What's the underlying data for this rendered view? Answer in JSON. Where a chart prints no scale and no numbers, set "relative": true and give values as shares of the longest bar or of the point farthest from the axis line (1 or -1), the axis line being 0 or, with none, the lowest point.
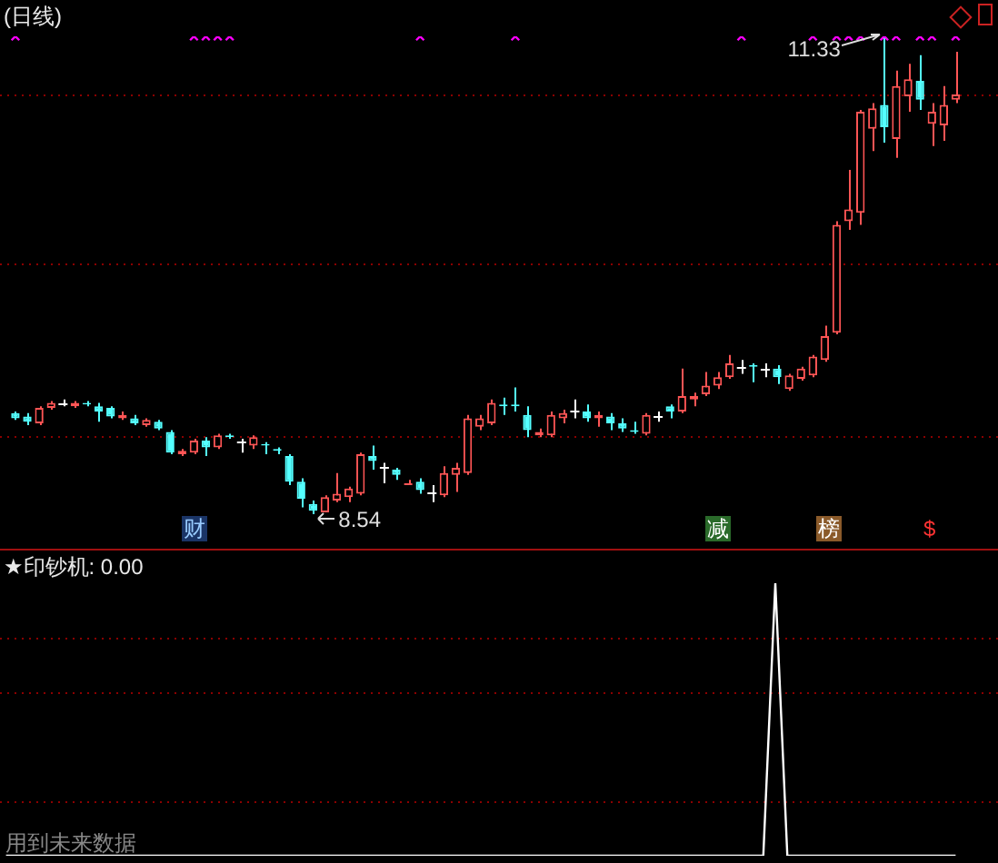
{
  "chart_data": [
    {
      "type": "candlestick",
      "title": "(日线)",
      "ref_lines": [
        {
          "axis": "y",
          "value": 10.99,
          "color": "#8b0000",
          "line_style": "dotted"
        },
        {
          "axis": "y",
          "value": 10.0,
          "color": "#8b0000",
          "line_style": "dotted"
        },
        {
          "axis": "y",
          "value": 9.0,
          "color": "#8b0000",
          "line_style": "dotted"
        }
      ],
      "categories": [
        null,
        null,
        null,
        null,
        null,
        null,
        null,
        null,
        null,
        null,
        null,
        null,
        null,
        null,
        null,
        null,
        null,
        null,
        null,
        null,
        null,
        null,
        null,
        null,
        null,
        null,
        null,
        null,
        null,
        null,
        null,
        null,
        null,
        null,
        null,
        null,
        null,
        null,
        null,
        null,
        null,
        null,
        null,
        null,
        null,
        null,
        null,
        null,
        null,
        null,
        null,
        null,
        null,
        null,
        null,
        null,
        null,
        null,
        null,
        null,
        null,
        null,
        null,
        null,
        null,
        null,
        null,
        null,
        null,
        null,
        null,
        null,
        null,
        null,
        null,
        null,
        null,
        null,
        null,
        null
      ],
      "ohlc": [
        [
          9.13,
          9.14,
          9.09,
          9.1
        ],
        [
          9.11,
          9.13,
          9.06,
          9.08
        ],
        [
          9.07,
          9.17,
          9.06,
          9.16
        ],
        [
          9.16,
          9.2,
          9.15,
          9.19
        ],
        [
          9.19,
          9.21,
          9.17,
          9.19
        ],
        [
          9.17,
          9.2,
          9.16,
          9.19
        ],
        [
          9.19,
          9.2,
          9.17,
          9.18
        ],
        [
          9.17,
          9.19,
          9.08,
          9.14
        ],
        [
          9.16,
          9.17,
          9.1,
          9.11
        ],
        [
          9.1,
          9.14,
          9.09,
          9.12
        ],
        [
          9.1,
          9.12,
          9.06,
          9.07
        ],
        [
          9.06,
          9.1,
          9.05,
          9.09
        ],
        [
          9.08,
          9.09,
          9.03,
          9.04
        ],
        [
          9.02,
          9.03,
          8.89,
          8.9
        ],
        [
          8.89,
          8.92,
          8.88,
          8.91
        ],
        [
          8.9,
          8.98,
          8.89,
          8.97
        ],
        [
          8.97,
          8.99,
          8.88,
          8.93
        ],
        [
          8.93,
          9.01,
          8.92,
          9.0
        ],
        [
          9.0,
          9.01,
          8.98,
          8.99
        ],
        [
          8.96,
          8.98,
          8.9,
          8.96
        ],
        [
          8.94,
          9.0,
          8.92,
          8.99
        ],
        [
          8.95,
          8.96,
          8.89,
          8.94
        ],
        [
          8.92,
          8.93,
          8.89,
          8.91
        ],
        [
          8.88,
          8.89,
          8.71,
          8.73
        ],
        [
          8.73,
          8.75,
          8.58,
          8.63
        ],
        [
          8.6,
          8.62,
          8.54,
          8.56
        ],
        [
          8.55,
          8.65,
          8.55,
          8.64
        ],
        [
          8.62,
          8.78,
          8.61,
          8.66
        ],
        [
          8.64,
          8.7,
          8.61,
          8.69
        ],
        [
          8.66,
          8.9,
          8.65,
          8.89
        ],
        [
          8.88,
          8.94,
          8.8,
          8.85
        ],
        [
          8.82,
          8.84,
          8.72,
          8.82
        ],
        [
          8.8,
          8.81,
          8.74,
          8.77
        ],
        [
          8.71,
          8.74,
          8.71,
          8.72
        ],
        [
          8.73,
          8.75,
          8.66,
          8.68
        ],
        [
          8.67,
          8.71,
          8.61,
          8.67
        ],
        [
          8.65,
          8.82,
          8.64,
          8.78
        ],
        [
          8.77,
          8.84,
          8.67,
          8.81
        ],
        [
          8.78,
          9.12,
          8.77,
          9.1
        ],
        [
          9.05,
          9.12,
          9.03,
          9.1
        ],
        [
          9.07,
          9.21,
          9.06,
          9.19
        ],
        [
          9.18,
          9.22,
          9.12,
          9.17
        ],
        [
          9.18,
          9.28,
          9.14,
          9.17
        ],
        [
          9.12,
          9.17,
          8.99,
          9.03
        ],
        [
          9.0,
          9.04,
          8.99,
          9.02
        ],
        [
          9.0,
          9.14,
          8.99,
          9.12
        ],
        [
          9.1,
          9.15,
          9.07,
          9.13
        ],
        [
          9.14,
          9.21,
          9.1,
          9.14
        ],
        [
          9.14,
          9.18,
          9.08,
          9.1
        ],
        [
          9.1,
          9.14,
          9.05,
          9.12
        ],
        [
          9.11,
          9.13,
          9.03,
          9.07
        ],
        [
          9.07,
          9.1,
          9.02,
          9.04
        ],
        [
          9.03,
          9.08,
          9.01,
          9.02
        ],
        [
          9.01,
          9.13,
          9.0,
          9.12
        ],
        [
          9.11,
          9.14,
          9.08,
          9.11
        ],
        [
          9.17,
          9.18,
          9.1,
          9.14
        ],
        [
          9.14,
          9.39,
          9.13,
          9.23
        ],
        [
          9.21,
          9.25,
          9.17,
          9.23
        ],
        [
          9.24,
          9.37,
          9.23,
          9.29
        ],
        [
          9.29,
          9.37,
          9.27,
          9.34
        ],
        [
          9.34,
          9.47,
          9.33,
          9.42
        ],
        [
          9.4,
          9.44,
          9.36,
          9.4
        ],
        [
          9.41,
          9.42,
          9.31,
          9.4
        ],
        [
          9.39,
          9.42,
          9.34,
          9.39
        ],
        [
          9.39,
          9.41,
          9.3,
          9.34
        ],
        [
          9.27,
          9.36,
          9.26,
          9.35
        ],
        [
          9.33,
          9.4,
          9.32,
          9.39
        ],
        [
          9.35,
          9.47,
          9.34,
          9.46
        ],
        [
          9.44,
          9.64,
          9.43,
          9.58
        ],
        [
          9.6,
          10.25,
          9.59,
          10.23
        ],
        [
          10.25,
          10.55,
          10.2,
          10.32
        ],
        [
          10.3,
          10.9,
          10.23,
          10.89
        ],
        [
          10.79,
          10.94,
          10.66,
          10.91
        ],
        [
          10.93,
          11.33,
          10.71,
          10.8
        ],
        [
          10.73,
          11.13,
          10.62,
          11.04
        ],
        [
          10.98,
          11.17,
          10.89,
          11.08
        ],
        [
          11.07,
          11.22,
          10.9,
          10.96
        ],
        [
          10.82,
          10.94,
          10.69,
          10.89
        ],
        [
          10.81,
          11.04,
          10.72,
          10.93
        ],
        [
          10.96,
          11.24,
          10.94,
          10.99
        ]
      ],
      "series": [
        {
          "type": "scatter",
          "marker": "cross",
          "color": "#ff00ff",
          "values": [
            11.33,
            null,
            null,
            null,
            null,
            null,
            null,
            null,
            null,
            null,
            null,
            null,
            null,
            null,
            null,
            11.33,
            11.33,
            11.33,
            11.33,
            null,
            null,
            null,
            null,
            null,
            null,
            null,
            null,
            null,
            null,
            null,
            null,
            null,
            null,
            null,
            11.33,
            null,
            null,
            null,
            null,
            null,
            null,
            null,
            11.33,
            null,
            null,
            null,
            null,
            null,
            null,
            null,
            null,
            null,
            null,
            null,
            null,
            null,
            null,
            null,
            null,
            null,
            null,
            11.33,
            null,
            null,
            null,
            null,
            null,
            11.33,
            null,
            11.33,
            11.33,
            11.33,
            null,
            11.33,
            11.33,
            null,
            11.33,
            11.33,
            null,
            11.33
          ]
        }
      ],
      "annotations": [
        "财",
        "减",
        "榜",
        "$",
        "11.33",
        "8.54"
      ]
    },
    {
      "type": "line",
      "title": "★印钞机: 0.00",
      "relative": true,
      "ref_lines": [
        {
          "axis": "y",
          "value": 0.8,
          "color": "#8b0000",
          "line_style": "dotted"
        },
        {
          "axis": "y",
          "value": 0.6,
          "color": "#8b0000",
          "line_style": "dotted"
        },
        {
          "axis": "y",
          "value": 0.2,
          "color": "#8b0000",
          "line_style": "dotted"
        }
      ],
      "categories": [
        null,
        null,
        null,
        null,
        null,
        null,
        null,
        null,
        null,
        null,
        null,
        null,
        null,
        null,
        null,
        null,
        null,
        null,
        null,
        null,
        null,
        null,
        null,
        null,
        null,
        null,
        null,
        null,
        null,
        null,
        null,
        null,
        null,
        null,
        null,
        null,
        null,
        null,
        null,
        null,
        null,
        null,
        null,
        null,
        null,
        null,
        null,
        null,
        null,
        null,
        null,
        null,
        null,
        null,
        null,
        null,
        null,
        null,
        null,
        null,
        null,
        null,
        null,
        null,
        null,
        null,
        null,
        null,
        null,
        null,
        null,
        null,
        null,
        null,
        null,
        null,
        null,
        null,
        null,
        null
      ],
      "series": [
        {
          "color": "#ffffff",
          "values": [
            0,
            0,
            0,
            0,
            0,
            0,
            0,
            0,
            0,
            0,
            0,
            0,
            0,
            0,
            0,
            0,
            0,
            0,
            0,
            0,
            0,
            0,
            0,
            0,
            0,
            0,
            0,
            0,
            0,
            0,
            0,
            0,
            0,
            0,
            0,
            0,
            0,
            0,
            0,
            0,
            0,
            0,
            0,
            0,
            0,
            0,
            0,
            0,
            0,
            0,
            0,
            0,
            0,
            0,
            0,
            0,
            0,
            0,
            0,
            0,
            0,
            0,
            0,
            0,
            1,
            0,
            0,
            0,
            0,
            0,
            0,
            0,
            0,
            0,
            0,
            0,
            0,
            0,
            0,
            0
          ]
        }
      ],
      "annotations": [
        "用到未来数据"
      ]
    }
  ]
}
